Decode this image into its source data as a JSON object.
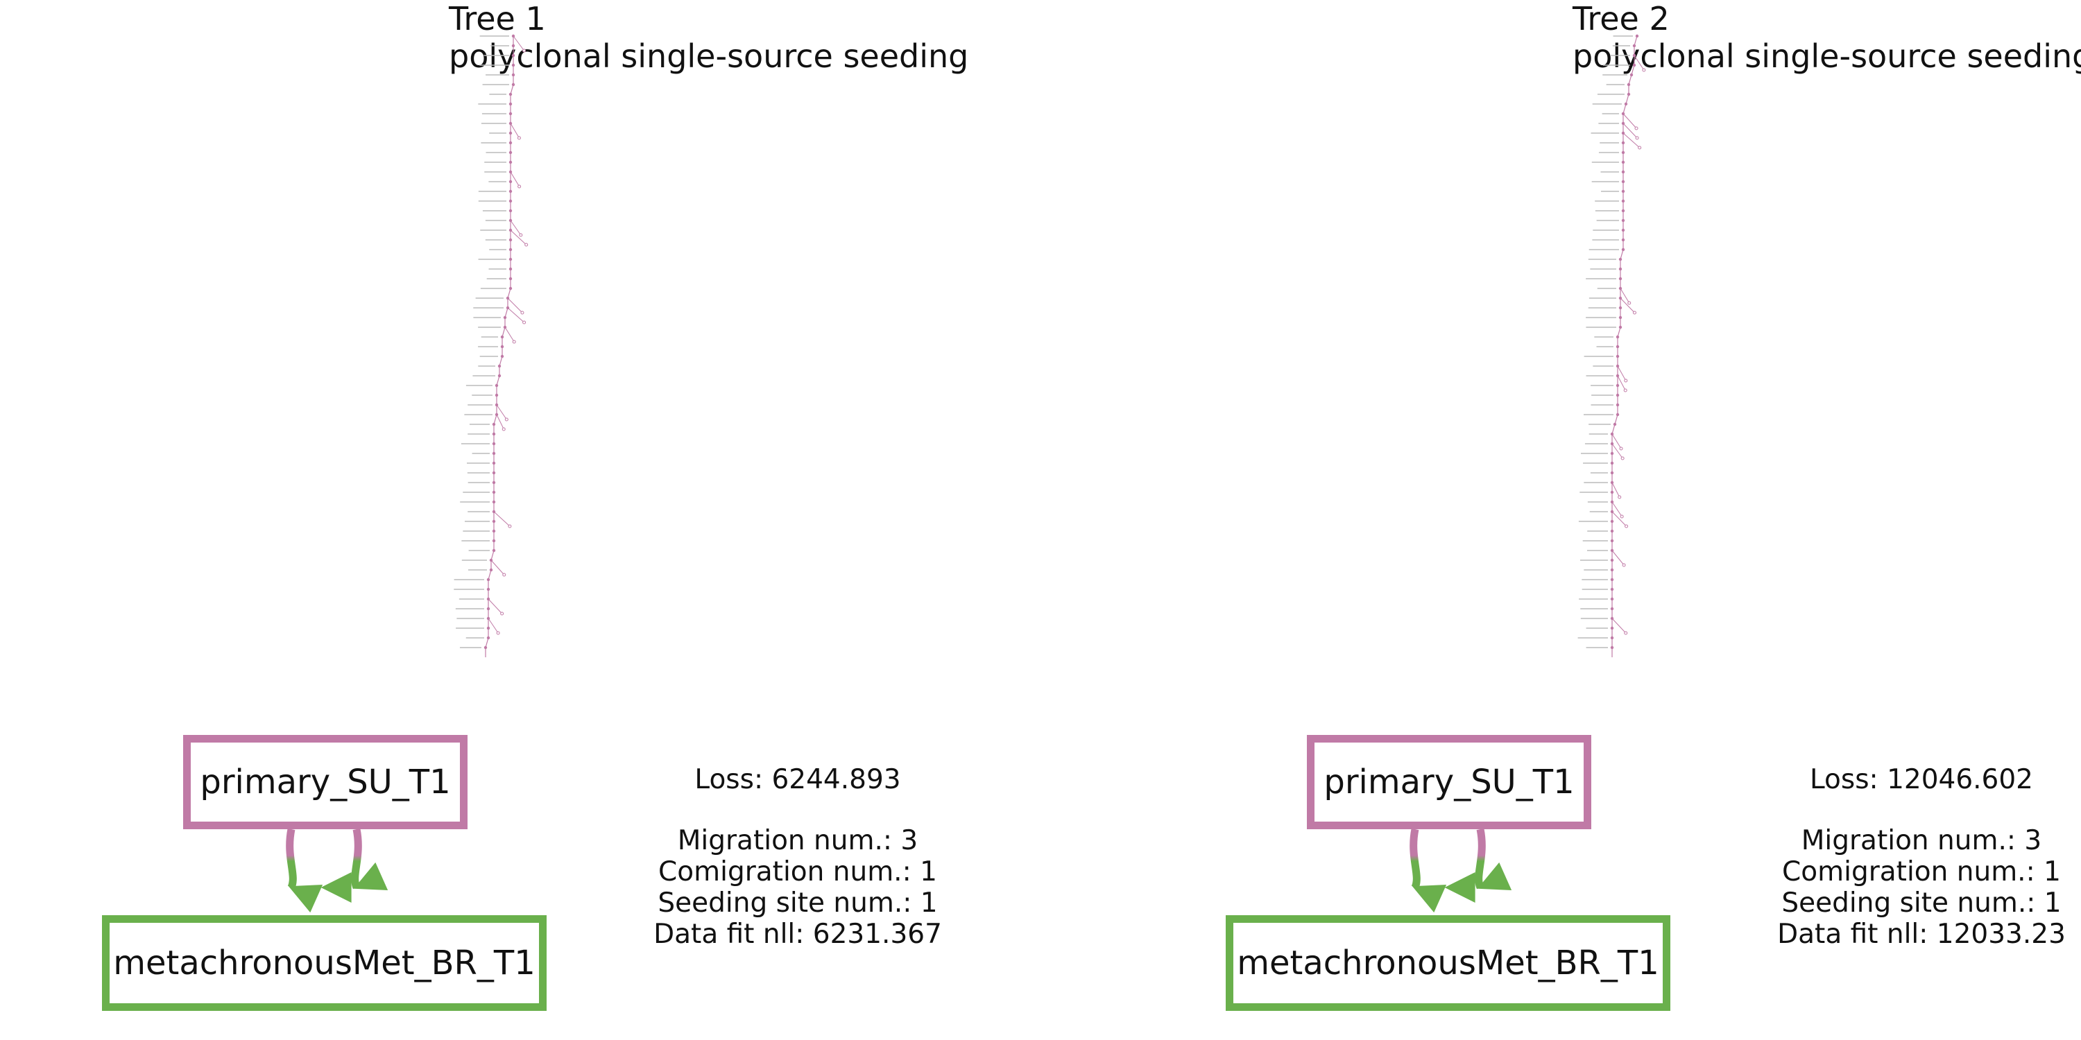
{
  "colors": {
    "primary": "#c07aa6",
    "metastasis": "#6ab04c"
  },
  "panels": [
    {
      "title": "Tree 1",
      "subtitle": "polyclonal single-source seeding",
      "primary_site": "primary_SU_T1",
      "met_site": "metachronousMet_BR_T1",
      "loss": "Loss: 6244.893",
      "migration": "Migration num.: 3",
      "comigration": "Comigration num.: 1",
      "seeding": "Seeding site num.: 1",
      "datafit": "Data fit nll: 6231.367"
    },
    {
      "title": "Tree 2",
      "subtitle": "polyclonal single-source seeding",
      "primary_site": "primary_SU_T1",
      "met_site": "metachronousMet_BR_T1",
      "loss": "Loss: 12046.602",
      "migration": "Migration num.: 3",
      "comigration": "Comigration num.: 1",
      "seeding": "Seeding site num.: 1",
      "datafit": "Data fit nll: 12033.23"
    }
  ]
}
